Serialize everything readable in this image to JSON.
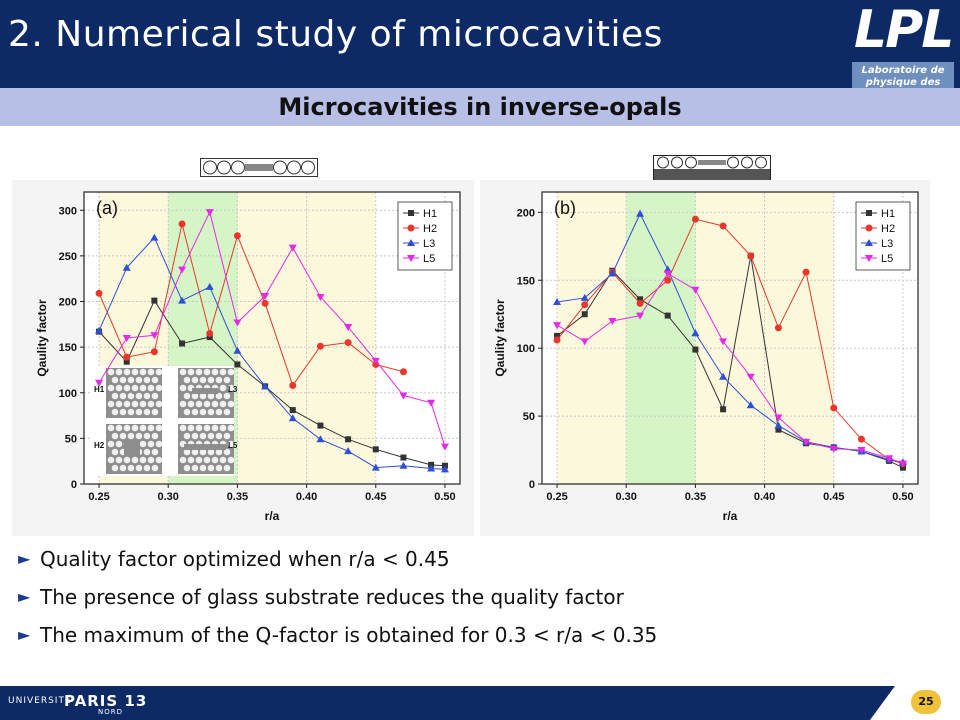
{
  "header": {
    "title": "2. Numerical study of microcavities",
    "logo_text": "LPL",
    "logo_sub1": "Laboratoire de",
    "logo_sub2": "physique des lasers",
    "bg_color": "#0d2a66"
  },
  "subheader": {
    "title": "Microcavities in inverse-opals"
  },
  "bullets": [
    "Quality factor optimized when  r/a < 0.45",
    "The presence of glass substrate reduces the quality factor",
    "The maximum of the Q-factor is obtained for  0.3 < r/a < 0.35"
  ],
  "footer": {
    "university": "UNIVERSITÉ",
    "paris": "PARIS 13",
    "nord": "NORD",
    "page": "25"
  },
  "chart_data": [
    {
      "type": "line",
      "panel": "(a)",
      "xlabel": "r/a",
      "ylabel": "Qaulity factor",
      "xlim": [
        0.25,
        0.5
      ],
      "ylim": [
        0,
        320
      ],
      "xticks": [
        0.25,
        0.3,
        0.35,
        0.4,
        0.45,
        0.5
      ],
      "yticks": [
        0,
        50,
        100,
        150,
        200,
        250,
        300
      ],
      "legend_position": "top-right",
      "inset_labels": [
        "H1",
        "L3",
        "H2",
        "L5"
      ],
      "series": [
        {
          "name": "H1",
          "color": "#333333",
          "marker": "square",
          "x": [
            0.25,
            0.27,
            0.29,
            0.31,
            0.33,
            0.35,
            0.37,
            0.39,
            0.41,
            0.43,
            0.45,
            0.47,
            0.49,
            0.5
          ],
          "y": [
            167,
            134,
            201,
            154,
            161,
            131,
            107,
            81,
            64,
            49,
            38,
            29,
            21,
            20
          ]
        },
        {
          "name": "H2",
          "color": "#e8362c",
          "marker": "circle",
          "x": [
            0.25,
            0.27,
            0.29,
            0.31,
            0.33,
            0.35,
            0.37,
            0.39,
            0.41,
            0.43,
            0.45,
            0.47
          ],
          "y": [
            209,
            139,
            145,
            285,
            165,
            272,
            198,
            108,
            151,
            155,
            131,
            123
          ]
        },
        {
          "name": "L3",
          "color": "#2e4fd6",
          "marker": "triangle-up",
          "x": [
            0.25,
            0.27,
            0.29,
            0.31,
            0.33,
            0.35,
            0.37,
            0.39,
            0.41,
            0.43,
            0.45,
            0.47,
            0.49,
            0.5
          ],
          "y": [
            168,
            237,
            270,
            201,
            216,
            146,
            107,
            72,
            49,
            36,
            18,
            20,
            17,
            16
          ]
        },
        {
          "name": "L5",
          "color": "#e629e6",
          "marker": "triangle-down",
          "x": [
            0.25,
            0.27,
            0.29,
            0.31,
            0.33,
            0.35,
            0.37,
            0.39,
            0.41,
            0.43,
            0.45,
            0.47,
            0.49,
            0.5
          ],
          "y": [
            111,
            160,
            163,
            235,
            298,
            177,
            206,
            259,
            205,
            172,
            135,
            97,
            89,
            41
          ]
        }
      ]
    },
    {
      "type": "line",
      "panel": "(b)",
      "xlabel": "r/a",
      "ylabel": "Qaulity factor",
      "xlim": [
        0.25,
        0.5
      ],
      "ylim": [
        0,
        215
      ],
      "xticks": [
        0.25,
        0.3,
        0.35,
        0.4,
        0.45,
        0.5
      ],
      "yticks": [
        0,
        50,
        100,
        150,
        200
      ],
      "legend_position": "top-right",
      "series": [
        {
          "name": "H1",
          "color": "#333333",
          "marker": "square",
          "x": [
            0.25,
            0.27,
            0.29,
            0.31,
            0.33,
            0.35,
            0.37,
            0.39,
            0.41,
            0.43,
            0.45,
            0.47,
            0.49,
            0.5
          ],
          "y": [
            109,
            125,
            157,
            136,
            124,
            99,
            55,
            168,
            40,
            30,
            27,
            24,
            17,
            12
          ]
        },
        {
          "name": "H2",
          "color": "#e8362c",
          "marker": "circle",
          "x": [
            0.25,
            0.27,
            0.29,
            0.31,
            0.33,
            0.35,
            0.37,
            0.39,
            0.41,
            0.43,
            0.45,
            0.47,
            0.49,
            0.5
          ],
          "y": [
            106,
            132,
            156,
            133,
            150,
            195,
            190,
            168,
            115,
            156,
            56,
            33,
            18,
            15
          ]
        },
        {
          "name": "L3",
          "color": "#2e4fd6",
          "marker": "triangle-up",
          "x": [
            0.25,
            0.27,
            0.29,
            0.31,
            0.33,
            0.35,
            0.37,
            0.39,
            0.41,
            0.43,
            0.45,
            0.47,
            0.49,
            0.5
          ],
          "y": [
            134,
            137,
            155,
            199,
            158,
            111,
            79,
            58,
            43,
            31,
            27,
            24,
            18,
            16
          ]
        },
        {
          "name": "L5",
          "color": "#e629e6",
          "marker": "triangle-down",
          "x": [
            0.25,
            0.27,
            0.29,
            0.31,
            0.33,
            0.35,
            0.37,
            0.39,
            0.41,
            0.43,
            0.45,
            0.47,
            0.49,
            0.5
          ],
          "y": [
            117,
            105,
            120,
            124,
            155,
            143,
            105,
            79,
            49,
            31,
            26,
            25,
            19,
            15
          ]
        }
      ]
    }
  ]
}
